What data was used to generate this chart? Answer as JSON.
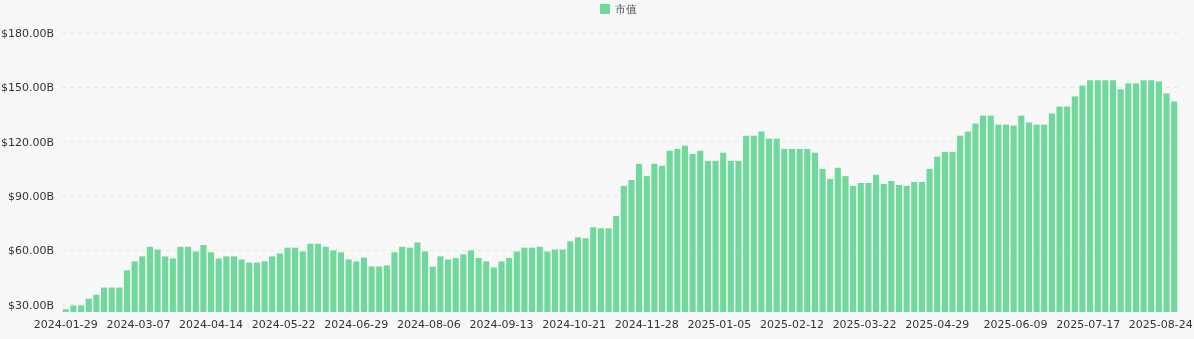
{
  "chart_data": {
    "type": "bar",
    "legend": "top",
    "grid": "y",
    "xlim": [
      "2024-01-27",
      "2025-09-02"
    ],
    "xticks": [
      "2024-01-29",
      "2024-03-07",
      "2024-04-14",
      "2024-05-22",
      "2024-06-29",
      "2024-08-06",
      "2024-09-13",
      "2024-10-21",
      "2024-11-28",
      "2025-01-05",
      "2025-02-12",
      "2025-03-22",
      "2025-04-29",
      "2025-06-09",
      "2025-07-17",
      "2025-08-24"
    ],
    "ylim": [
      26,
      180
    ],
    "yticks": [
      {
        "value": 30,
        "label": "$30.00B"
      },
      {
        "value": 60,
        "label": "$60.00B"
      },
      {
        "value": 90,
        "label": "$90.00B"
      },
      {
        "value": 120,
        "label": "$120.00B"
      },
      {
        "value": 150,
        "label": "$150.00B"
      },
      {
        "value": 180,
        "label": "$180.00B"
      }
    ],
    "x": [
      "2024-01-29",
      "2024-02-02",
      "2024-02-06",
      "2024-02-10",
      "2024-02-14",
      "2024-02-18",
      "2024-02-22",
      "2024-02-26",
      "2024-03-01",
      "2024-03-05",
      "2024-03-09",
      "2024-03-13",
      "2024-03-17",
      "2024-03-21",
      "2024-03-25",
      "2024-03-29",
      "2024-04-02",
      "2024-04-06",
      "2024-04-10",
      "2024-04-14",
      "2024-04-18",
      "2024-04-22",
      "2024-04-26",
      "2024-04-30",
      "2024-05-04",
      "2024-05-08",
      "2024-05-12",
      "2024-05-16",
      "2024-05-20",
      "2024-05-24",
      "2024-05-28",
      "2024-06-01",
      "2024-06-05",
      "2024-06-09",
      "2024-06-13",
      "2024-06-17",
      "2024-06-21",
      "2024-06-25",
      "2024-06-29",
      "2024-07-03",
      "2024-07-07",
      "2024-07-11",
      "2024-07-15",
      "2024-07-19",
      "2024-07-23",
      "2024-07-27",
      "2024-07-31",
      "2024-08-04",
      "2024-08-08",
      "2024-08-12",
      "2024-08-16",
      "2024-08-20",
      "2024-08-24",
      "2024-08-28",
      "2024-09-01",
      "2024-09-05",
      "2024-09-09",
      "2024-09-13",
      "2024-09-17",
      "2024-09-21",
      "2024-09-25",
      "2024-09-29",
      "2024-10-03",
      "2024-10-07",
      "2024-10-11",
      "2024-10-15",
      "2024-10-19",
      "2024-10-23",
      "2024-10-27",
      "2024-10-31",
      "2024-11-04",
      "2024-11-08",
      "2024-11-12",
      "2024-11-16",
      "2024-11-20",
      "2024-11-24",
      "2024-11-28",
      "2024-12-02",
      "2024-12-06",
      "2024-12-10",
      "2024-12-14",
      "2024-12-18",
      "2024-12-22",
      "2024-12-26",
      "2024-12-30",
      "2025-01-03",
      "2025-01-07",
      "2025-01-11",
      "2025-01-15",
      "2025-01-19",
      "2025-01-23",
      "2025-01-27",
      "2025-01-31",
      "2025-02-04",
      "2025-02-08",
      "2025-02-12",
      "2025-02-16",
      "2025-02-20",
      "2025-02-24",
      "2025-02-28",
      "2025-03-04",
      "2025-03-08",
      "2025-03-12",
      "2025-03-16",
      "2025-03-20",
      "2025-03-24",
      "2025-03-28",
      "2025-04-01",
      "2025-04-05",
      "2025-04-09",
      "2025-04-13",
      "2025-04-17",
      "2025-04-21",
      "2025-04-25",
      "2025-04-29",
      "2025-05-03",
      "2025-05-07",
      "2025-05-11",
      "2025-05-15",
      "2025-05-19",
      "2025-05-23",
      "2025-05-27",
      "2025-05-31",
      "2025-06-04",
      "2025-06-08",
      "2025-06-12",
      "2025-06-16",
      "2025-06-20",
      "2025-06-24",
      "2025-06-28",
      "2025-07-02",
      "2025-07-06",
      "2025-07-10",
      "2025-07-14",
      "2025-07-18",
      "2025-07-22",
      "2025-07-26",
      "2025-07-30",
      "2025-08-03",
      "2025-08-07",
      "2025-08-11",
      "2025-08-15",
      "2025-08-19",
      "2025-08-23",
      "2025-08-27",
      "2025-08-31"
    ],
    "series": [
      {
        "name": "市值",
        "color": "#6fd99c",
        "values": [
          27.5,
          29.6,
          29.6,
          33.3,
          35.5,
          39.5,
          39.5,
          39.5,
          49,
          54,
          56.7,
          62,
          60.5,
          56.7,
          55.5,
          62,
          62,
          59.4,
          63,
          59,
          55.5,
          56.7,
          56.7,
          55,
          53.3,
          53.3,
          54,
          56.7,
          58.3,
          61.5,
          61.5,
          59.4,
          63.7,
          63.7,
          62,
          60,
          58.9,
          55,
          53.9,
          56,
          51.1,
          51.1,
          51.7,
          59,
          62,
          61.5,
          64.4,
          59.4,
          51,
          56.7,
          55,
          55.8,
          57.8,
          60,
          55.8,
          54,
          50.6,
          53.9,
          55.8,
          59.4,
          61.5,
          61.5,
          62,
          59.4,
          60.5,
          60.5,
          65,
          67.2,
          66.7,
          72.8,
          72.2,
          72.2,
          79,
          95.6,
          98.9,
          107.8,
          101,
          107.8,
          106.7,
          115,
          116,
          117.8,
          113.3,
          115,
          109.4,
          109.4,
          113.9,
          109.4,
          109.4,
          123.3,
          123.3,
          125.6,
          121.7,
          121.7,
          116,
          116,
          116,
          116,
          113.9,
          105,
          99.4,
          105.6,
          101,
          95.6,
          97.2,
          97.2,
          101.7,
          96.7,
          98.3,
          96.1,
          95.6,
          97.8,
          97.8,
          105,
          111.7,
          114.4,
          114.4,
          123.3,
          125.6,
          130,
          134.4,
          134.4,
          129.4,
          129.4,
          128.9,
          134.4,
          130.6,
          129.4,
          129.4,
          135.6,
          139.4,
          139.4,
          145,
          151,
          153.9,
          153.9,
          153.9,
          153.9,
          148.9,
          152.2,
          152.2,
          153.9,
          153.9,
          153.3,
          146.7,
          142.2
        ]
      }
    ]
  }
}
